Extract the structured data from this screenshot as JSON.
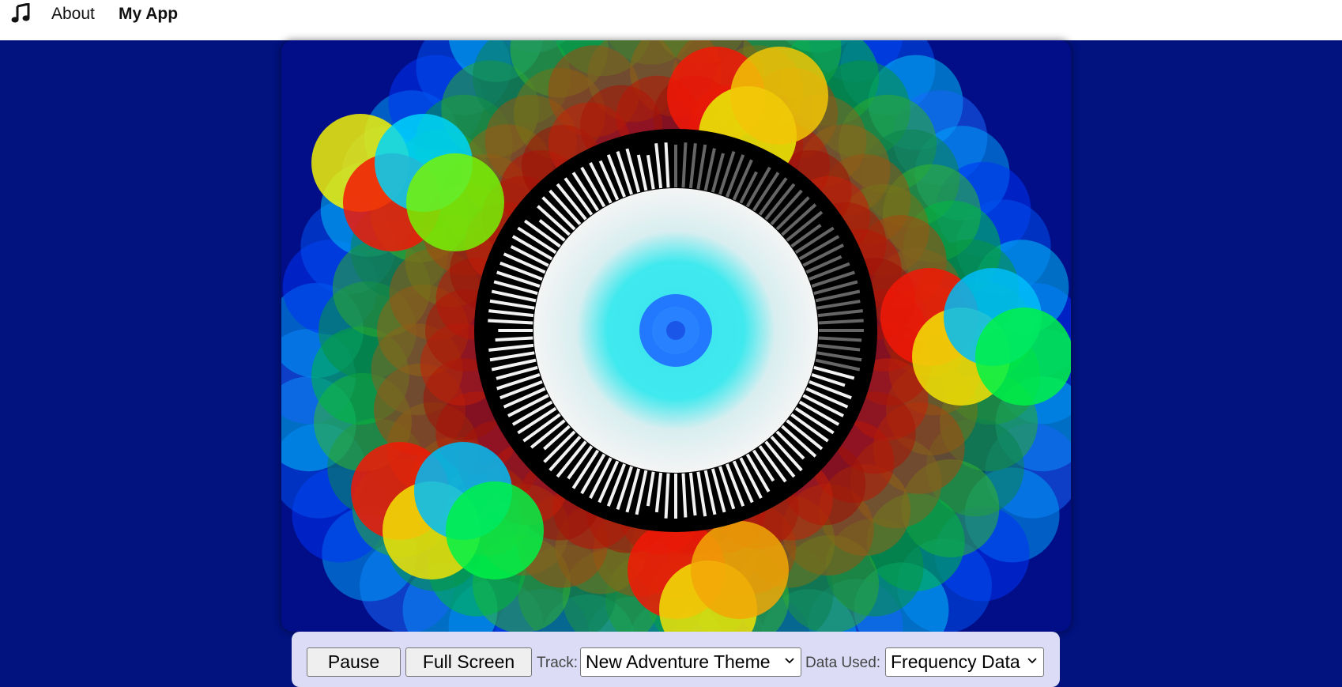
{
  "nav": {
    "brand_icon": "music-note-icon",
    "about_label": "About",
    "brand_label": "My App"
  },
  "visualizer": {
    "description_icon": "visualizer-canvas"
  },
  "controls": {
    "pause_label": "Pause",
    "fullscreen_label": "Full Screen",
    "track_label": "Track:",
    "track_value": "New Adventure Theme",
    "data_label": "Data Used:",
    "data_value": "Frequency Data"
  },
  "colors": {
    "background": "#02127f",
    "controls_bg": "#dcdcf6"
  }
}
